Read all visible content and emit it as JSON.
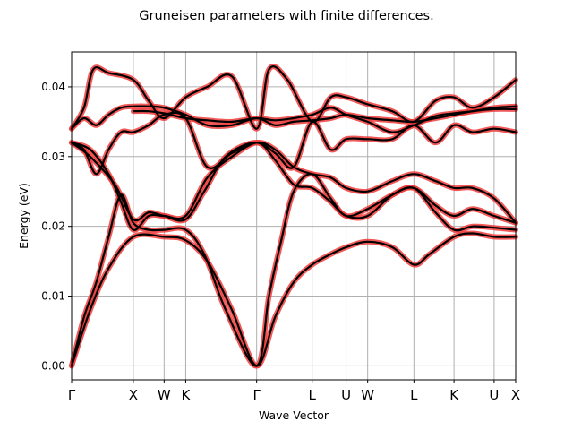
{
  "chart_data": {
    "type": "line",
    "title": "Gruneisen parameters with finite differences.",
    "xlabel": "Wave Vector",
    "ylabel": "Energy (eV)",
    "ylim": [
      -0.002,
      0.045
    ],
    "yticks": [
      "0.00",
      "0.01",
      "0.02",
      "0.03",
      "0.04"
    ],
    "ytick_values": [
      0.0,
      0.01,
      0.02,
      0.03,
      0.04
    ],
    "xticks": [
      "Γ",
      "X",
      "W",
      "K",
      "Γ",
      "L",
      "U",
      "W",
      "L",
      "K",
      "U",
      "X"
    ],
    "xtick_positions": [
      0,
      1.0,
      1.5,
      1.85,
      3.0,
      3.9,
      4.45,
      4.8,
      5.55,
      6.2,
      6.85,
      7.2
    ],
    "grid": true,
    "legend": "none",
    "colors": {
      "band": "#000000",
      "halo": "#f03c3c"
    },
    "series": [
      {
        "values": [
          [
            0,
            0
          ],
          [
            0.3,
            0.008
          ],
          [
            0.6,
            0.014
          ],
          [
            1.0,
            0.0185
          ],
          [
            1.5,
            0.0185
          ],
          [
            1.85,
            0.018
          ],
          [
            2.2,
            0.015
          ],
          [
            2.6,
            0.008
          ],
          [
            3.0,
            0.0
          ],
          [
            3.3,
            0.007
          ],
          [
            3.6,
            0.012
          ],
          [
            3.9,
            0.0145
          ],
          [
            4.2,
            0.016
          ],
          [
            4.45,
            0.017
          ],
          [
            4.8,
            0.0178
          ],
          [
            5.2,
            0.017
          ],
          [
            5.55,
            0.0145
          ],
          [
            5.8,
            0.016
          ],
          [
            6.2,
            0.0185
          ],
          [
            6.5,
            0.019
          ],
          [
            6.85,
            0.0185
          ],
          [
            7.2,
            0.0185
          ]
        ]
      },
      {
        "values": [
          [
            0,
            0
          ],
          [
            0.2,
            0.007
          ],
          [
            0.4,
            0.012
          ],
          [
            0.6,
            0.0185
          ],
          [
            0.8,
            0.0245
          ],
          [
            1.0,
            0.0205
          ],
          [
            1.25,
            0.0195
          ],
          [
            1.5,
            0.0195
          ],
          [
            1.85,
            0.0195
          ],
          [
            2.15,
            0.016
          ],
          [
            2.5,
            0.008
          ],
          [
            3.0,
            0.0
          ],
          [
            3.2,
            0.01
          ],
          [
            3.4,
            0.018
          ],
          [
            3.6,
            0.025
          ],
          [
            3.9,
            0.0275
          ],
          [
            4.2,
            0.024
          ],
          [
            4.45,
            0.0215
          ],
          [
            4.8,
            0.0225
          ],
          [
            5.2,
            0.0245
          ],
          [
            5.55,
            0.0255
          ],
          [
            5.9,
            0.022
          ],
          [
            6.2,
            0.0195
          ],
          [
            6.5,
            0.02
          ],
          [
            6.85,
            0.0198
          ],
          [
            7.2,
            0.0195
          ]
        ]
      },
      {
        "values": [
          [
            0,
            0.032
          ],
          [
            0.3,
            0.03
          ],
          [
            0.7,
            0.026
          ],
          [
            1.0,
            0.021
          ],
          [
            1.25,
            0.022
          ],
          [
            1.5,
            0.0215
          ],
          [
            1.85,
            0.021
          ],
          [
            2.15,
            0.025
          ],
          [
            2.5,
            0.03
          ],
          [
            3.0,
            0.032
          ],
          [
            3.3,
            0.0295
          ],
          [
            3.6,
            0.026
          ],
          [
            3.9,
            0.0255
          ],
          [
            4.2,
            0.0235
          ],
          [
            4.45,
            0.0215
          ],
          [
            4.8,
            0.0215
          ],
          [
            5.2,
            0.0245
          ],
          [
            5.55,
            0.0255
          ],
          [
            5.9,
            0.023
          ],
          [
            6.2,
            0.0215
          ],
          [
            6.5,
            0.0225
          ],
          [
            6.85,
            0.0215
          ],
          [
            7.2,
            0.0205
          ]
        ]
      },
      {
        "values": [
          [
            0,
            0.032
          ],
          [
            0.3,
            0.031
          ],
          [
            0.6,
            0.0275
          ],
          [
            0.8,
            0.0235
          ],
          [
            1.0,
            0.0195
          ],
          [
            1.25,
            0.0215
          ],
          [
            1.5,
            0.0215
          ],
          [
            1.85,
            0.0215
          ],
          [
            2.2,
            0.027
          ],
          [
            2.6,
            0.03
          ],
          [
            3.0,
            0.032
          ],
          [
            3.3,
            0.031
          ],
          [
            3.6,
            0.0285
          ],
          [
            3.9,
            0.0275
          ],
          [
            4.2,
            0.027
          ],
          [
            4.45,
            0.0255
          ],
          [
            4.8,
            0.025
          ],
          [
            5.2,
            0.0265
          ],
          [
            5.55,
            0.0275
          ],
          [
            5.9,
            0.0265
          ],
          [
            6.2,
            0.0255
          ],
          [
            6.5,
            0.0255
          ],
          [
            6.85,
            0.024
          ],
          [
            7.2,
            0.0205
          ]
        ]
      },
      {
        "values": [
          [
            0,
            0.032
          ],
          [
            0.2,
            0.031
          ],
          [
            0.4,
            0.0275
          ],
          [
            0.6,
            0.031
          ],
          [
            0.8,
            0.0335
          ],
          [
            1.0,
            0.0335
          ],
          [
            1.25,
            0.0345
          ],
          [
            1.5,
            0.036
          ],
          [
            1.85,
            0.0355
          ],
          [
            2.2,
            0.0285
          ],
          [
            2.6,
            0.0305
          ],
          [
            3.0,
            0.032
          ],
          [
            3.3,
            0.0305
          ],
          [
            3.6,
            0.0285
          ],
          [
            3.9,
            0.035
          ],
          [
            4.2,
            0.031
          ],
          [
            4.45,
            0.0325
          ],
          [
            4.8,
            0.0325
          ],
          [
            5.2,
            0.0325
          ],
          [
            5.55,
            0.0345
          ],
          [
            5.9,
            0.032
          ],
          [
            6.2,
            0.0345
          ],
          [
            6.5,
            0.0335
          ],
          [
            6.85,
            0.034
          ],
          [
            7.2,
            0.0335
          ]
        ]
      },
      {
        "values": [
          [
            0,
            0.034
          ],
          [
            0.2,
            0.0355
          ],
          [
            0.4,
            0.0345
          ],
          [
            0.6,
            0.036
          ],
          [
            0.8,
            0.037
          ],
          [
            1.0,
            0.0372
          ],
          [
            1.25,
            0.0372
          ],
          [
            1.5,
            0.037
          ],
          [
            1.85,
            0.036
          ],
          [
            2.2,
            0.0345
          ],
          [
            2.6,
            0.0345
          ],
          [
            3.0,
            0.0355
          ],
          [
            3.3,
            0.0345
          ],
          [
            3.6,
            0.035
          ],
          [
            3.9,
            0.0352
          ],
          [
            4.2,
            0.0355
          ],
          [
            4.45,
            0.036
          ],
          [
            4.8,
            0.0355
          ],
          [
            5.2,
            0.0352
          ],
          [
            5.55,
            0.035
          ],
          [
            5.9,
            0.0355
          ],
          [
            6.2,
            0.036
          ],
          [
            6.5,
            0.0365
          ],
          [
            6.85,
            0.037
          ],
          [
            7.2,
            0.0372
          ]
        ]
      },
      {
        "values": [
          [
            0,
            0.034
          ],
          [
            0.2,
            0.037
          ],
          [
            0.35,
            0.0425
          ],
          [
            0.6,
            0.042
          ],
          [
            1.0,
            0.041
          ],
          [
            1.25,
            0.038
          ],
          [
            1.5,
            0.0355
          ],
          [
            1.85,
            0.0385
          ],
          [
            2.2,
            0.04
          ],
          [
            2.6,
            0.0415
          ],
          [
            3.0,
            0.034
          ],
          [
            3.2,
            0.0425
          ],
          [
            3.5,
            0.041
          ],
          [
            3.9,
            0.035
          ],
          [
            4.2,
            0.0385
          ],
          [
            4.45,
            0.0385
          ],
          [
            4.8,
            0.0375
          ],
          [
            5.2,
            0.0365
          ],
          [
            5.55,
            0.035
          ],
          [
            5.9,
            0.038
          ],
          [
            6.2,
            0.0385
          ],
          [
            6.5,
            0.037
          ],
          [
            6.85,
            0.0385
          ],
          [
            7.2,
            0.041
          ]
        ]
      },
      {
        "values": [
          [
            1.0,
            0.0365
          ],
          [
            1.25,
            0.0365
          ],
          [
            1.5,
            0.0362
          ],
          [
            1.85,
            0.0355
          ],
          [
            2.2,
            0.0352
          ],
          [
            2.6,
            0.035
          ],
          [
            3.0,
            0.0355
          ],
          [
            3.3,
            0.0352
          ],
          [
            3.6,
            0.0355
          ],
          [
            3.9,
            0.036
          ],
          [
            4.2,
            0.037
          ],
          [
            4.45,
            0.036
          ],
          [
            4.8,
            0.035
          ],
          [
            5.2,
            0.0335
          ],
          [
            5.55,
            0.0345
          ],
          [
            5.9,
            0.0358
          ],
          [
            6.2,
            0.0362
          ],
          [
            6.5,
            0.0365
          ],
          [
            6.85,
            0.0368
          ],
          [
            7.2,
            0.0368
          ]
        ]
      }
    ]
  }
}
